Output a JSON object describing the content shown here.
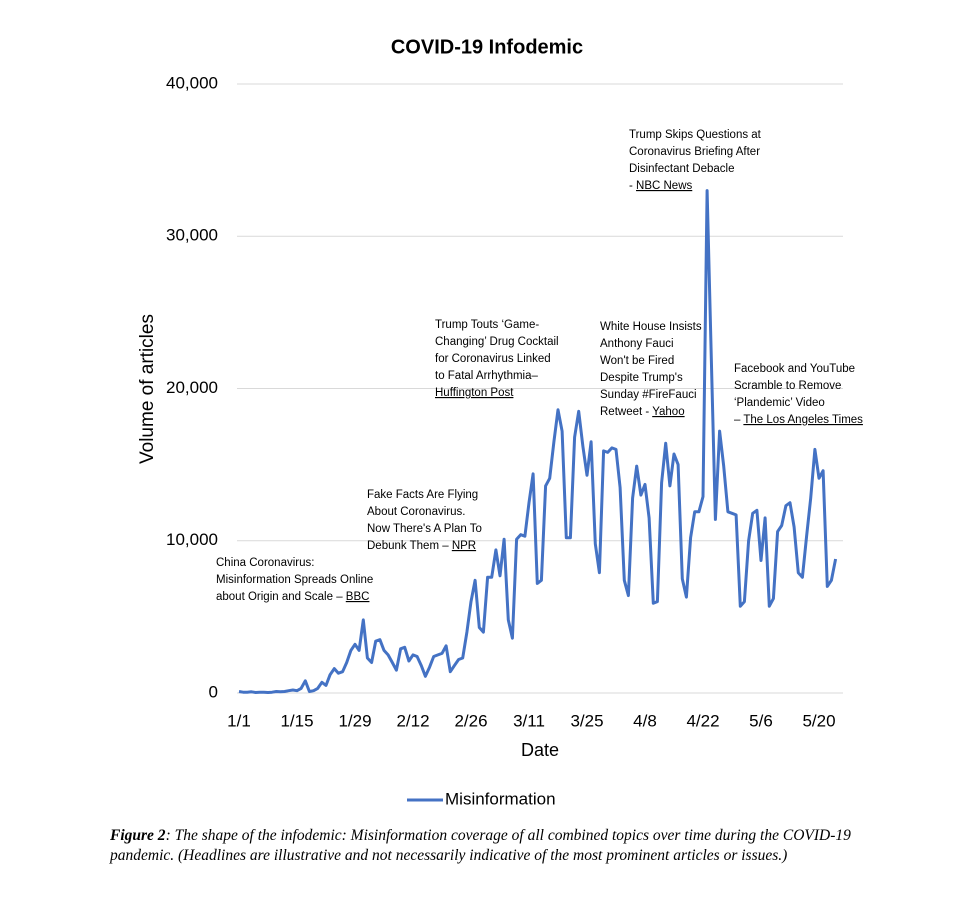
{
  "chart_data": {
    "type": "line",
    "title": "COVID-19 Infodemic",
    "x_label": "Date",
    "y_label": "Volume of articles",
    "categories": [
      "1/1",
      null,
      null,
      null,
      null,
      null,
      null,
      null,
      null,
      null,
      null,
      null,
      null,
      null,
      "1/15",
      null,
      null,
      null,
      null,
      null,
      null,
      null,
      null,
      null,
      null,
      null,
      null,
      null,
      "1/29",
      null,
      null,
      null,
      null,
      null,
      null,
      null,
      null,
      null,
      null,
      null,
      null,
      null,
      "2/12",
      null,
      null,
      null,
      null,
      null,
      null,
      null,
      null,
      null,
      null,
      null,
      null,
      null,
      "2/26",
      null,
      null,
      null,
      null,
      null,
      null,
      null,
      null,
      null,
      null,
      null,
      null,
      null,
      "3/11",
      null,
      null,
      null,
      null,
      null,
      null,
      null,
      null,
      null,
      null,
      null,
      null,
      null,
      "3/25",
      null,
      null,
      null,
      null,
      null,
      null,
      null,
      null,
      null,
      null,
      null,
      null,
      null,
      "4/8",
      null,
      null,
      null,
      null,
      null,
      null,
      null,
      null,
      null,
      null,
      null,
      null,
      null,
      "4/22",
      null,
      null,
      null,
      null,
      null,
      null,
      null,
      null,
      null,
      null,
      null,
      null,
      null,
      "5/6",
      null,
      null,
      null,
      null,
      null,
      null,
      null,
      null,
      null,
      null,
      null,
      null,
      null,
      "5/20",
      null,
      null,
      null,
      null
    ],
    "series": [
      {
        "name": "Misinformation",
        "color": "#4472c4",
        "values": [
          100,
          50,
          50,
          80,
          30,
          50,
          50,
          30,
          50,
          100,
          80,
          100,
          150,
          200,
          150,
          300,
          800,
          100,
          150,
          300,
          700,
          500,
          1200,
          1600,
          1300,
          1400,
          2000,
          2800,
          3200,
          2800,
          4800,
          2300,
          2000,
          3400,
          3500,
          2800,
          2500,
          2000,
          1500,
          2900,
          3000,
          2100,
          2500,
          2400,
          1800,
          1100,
          1700,
          2400,
          2500,
          2600,
          3100,
          1400,
          1800,
          2200,
          2300,
          4000,
          6000,
          7400,
          4300,
          4000,
          7600,
          7600,
          9400,
          7700,
          10100,
          4800,
          3600,
          10100,
          10400,
          10300,
          12500,
          14400,
          7200,
          7400,
          13600,
          14100,
          16500,
          18600,
          17200,
          10200,
          10200,
          16800,
          18500,
          16200,
          14300,
          16500,
          9800,
          7900,
          15900,
          15800,
          16100,
          16000,
          13500,
          7400,
          6400,
          12800,
          14900,
          13000,
          13700,
          11500,
          5900,
          6000,
          13800,
          16400,
          13600,
          15700,
          15000,
          7500,
          6300,
          10200,
          11900,
          11900,
          12900,
          33000,
          22000,
          11400,
          17200,
          14900,
          11900,
          11800,
          11700,
          5700,
          6000,
          10000,
          11800,
          12000,
          8700,
          11500,
          5700,
          6200,
          10600,
          11000,
          12300,
          12500,
          10900,
          7900,
          7600,
          10300,
          12800,
          16000,
          14100,
          14600,
          7000,
          7400,
          8800
        ]
      }
    ],
    "ylim": [
      0,
      40000
    ],
    "yticks": [
      0,
      {
        "value": 10000,
        "label": "10,000"
      },
      {
        "value": 20000,
        "label": "20,000"
      },
      {
        "value": 30000,
        "label": "30,000"
      },
      {
        "value": 40000,
        "label": "40,000"
      }
    ],
    "grid": true,
    "legend": "bottom",
    "annotations": [
      {
        "lines": [
          [
            "China Coronavirus:"
          ],
          [
            "Misinformation Spreads Online"
          ],
          [
            "about Origin and Scale – ",
            {
              "link": "BBC"
            }
          ]
        ]
      },
      {
        "lines": [
          [
            "Fake Facts Are Flying"
          ],
          [
            "About Coronavirus."
          ],
          [
            "Now There's A Plan To"
          ],
          [
            "Debunk Them – ",
            {
              "link": "NPR"
            }
          ]
        ]
      },
      {
        "lines": [
          [
            "Trump Touts ‘Game-"
          ],
          [
            "Changing’ Drug Cocktail"
          ],
          [
            "for Coronavirus Linked"
          ],
          [
            "to Fatal Arrhythmia–"
          ],
          [
            {
              "link": "Huffington Post"
            }
          ]
        ]
      },
      {
        "lines": [
          [
            "White House Insists"
          ],
          [
            "Anthony Fauci"
          ],
          [
            "Won't be Fired"
          ],
          [
            "Despite Trump's"
          ],
          [
            "Sunday #FireFauci"
          ],
          [
            "Retweet - ",
            {
              "link": "Yahoo"
            }
          ]
        ]
      },
      {
        "lines": [
          [
            "Trump Skips Questions at"
          ],
          [
            "Coronavirus Briefing After"
          ],
          [
            "Disinfectant Debacle"
          ],
          [
            "- ",
            {
              "link": "NBC News"
            }
          ]
        ]
      },
      {
        "lines": [
          [
            "Facebook and YouTube"
          ],
          [
            "Scramble to Remove"
          ],
          [
            "‘Plandemic’ Video"
          ],
          [
            "– ",
            {
              "link": "The Los Angeles Times"
            }
          ]
        ]
      }
    ]
  },
  "caption": {
    "label": "Figure 2",
    "text": ": The shape of the infodemic: Misinformation coverage of all combined topics over time during the COVID-19 pandemic. (Headlines are illustrative and not necessarily indicative of the most prominent articles or issues.)"
  }
}
